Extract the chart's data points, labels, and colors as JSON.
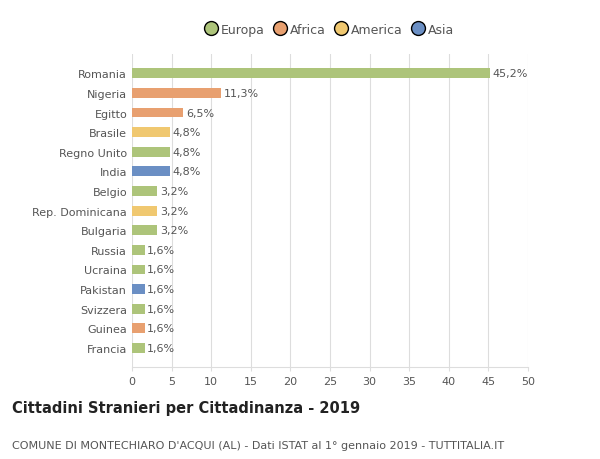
{
  "countries": [
    "Francia",
    "Guinea",
    "Svizzera",
    "Pakistan",
    "Ucraina",
    "Russia",
    "Bulgaria",
    "Rep. Dominicana",
    "Belgio",
    "India",
    "Regno Unito",
    "Brasile",
    "Egitto",
    "Nigeria",
    "Romania"
  ],
  "values": [
    1.6,
    1.6,
    1.6,
    1.6,
    1.6,
    1.6,
    3.2,
    3.2,
    3.2,
    4.8,
    4.8,
    4.8,
    6.5,
    11.3,
    45.2
  ],
  "labels": [
    "1,6%",
    "1,6%",
    "1,6%",
    "1,6%",
    "1,6%",
    "1,6%",
    "3,2%",
    "3,2%",
    "3,2%",
    "4,8%",
    "4,8%",
    "4,8%",
    "6,5%",
    "11,3%",
    "45,2%"
  ],
  "colors": [
    "#adc47a",
    "#e8a070",
    "#adc47a",
    "#6b8fc4",
    "#adc47a",
    "#adc47a",
    "#adc47a",
    "#f0c870",
    "#adc47a",
    "#6b8fc4",
    "#adc47a",
    "#f0c870",
    "#e8a070",
    "#e8a070",
    "#adc47a"
  ],
  "legend": [
    {
      "label": "Europa",
      "color": "#adc47a"
    },
    {
      "label": "Africa",
      "color": "#e8a070"
    },
    {
      "label": "America",
      "color": "#f0c870"
    },
    {
      "label": "Asia",
      "color": "#6b8fc4"
    }
  ],
  "title": "Cittadini Stranieri per Cittadinanza - 2019",
  "subtitle": "COMUNE DI MONTECHIARO D'ACQUI (AL) - Dati ISTAT al 1° gennaio 2019 - TUTTITALIA.IT",
  "xlim": [
    0,
    50
  ],
  "xticks": [
    0,
    5,
    10,
    15,
    20,
    25,
    30,
    35,
    40,
    45,
    50
  ],
  "background_color": "#ffffff",
  "grid_color": "#dddddd",
  "bar_height": 0.5,
  "title_fontsize": 10.5,
  "subtitle_fontsize": 8,
  "label_fontsize": 8,
  "tick_fontsize": 8,
  "legend_fontsize": 9
}
